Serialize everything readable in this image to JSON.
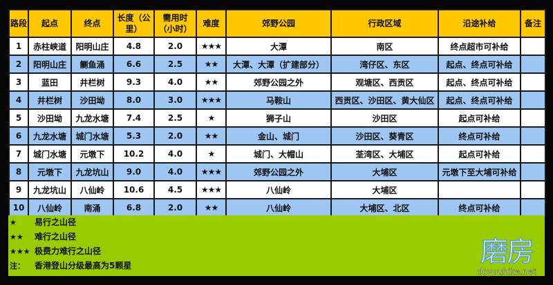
{
  "headers": [
    "路段",
    "起点",
    "终点",
    "长度（公里）",
    "需用时（小时）",
    "难度",
    "郊野公园",
    "行政区域",
    "沿途补给",
    "备注"
  ],
  "rows": [
    {
      "seg": "1",
      "start": "赤柱峡道",
      "end": "阳明山庄",
      "length": "4.8",
      "time": "2.0",
      "difficulty": "★★★",
      "park": "大潭",
      "district": "南区",
      "supply": "终点超市可补给",
      "note": ""
    },
    {
      "seg": "2",
      "start": "阳明山庄",
      "end": "鲗鱼涌",
      "length": "6.6",
      "time": "2.5",
      "difficulty": "★★",
      "park": "大潭、大潭（扩建部分）",
      "district": "湾仔区、东区",
      "supply": "起点、终点可补给",
      "note": ""
    },
    {
      "seg": "3",
      "start": "蓝田",
      "end": "井栏树",
      "length": "9.3",
      "time": "4.0",
      "difficulty": "★★",
      "park": "郊野公园之外",
      "district": "观塘区、西贡区",
      "supply": "起点、终点可补给",
      "note": ""
    },
    {
      "seg": "4",
      "start": "井栏树",
      "end": "沙田坳",
      "length": "8.0",
      "time": "3.0",
      "difficulty": "★★★",
      "park": "马鞍山",
      "district": "西贡区、沙田区、黄大仙区",
      "supply": "起点、终点可补给",
      "note": ""
    },
    {
      "seg": "5",
      "start": "沙田坳",
      "end": "九龙水塘",
      "length": "7.4",
      "time": "2.5",
      "difficulty": "★",
      "park": "狮子山",
      "district": "沙田区",
      "supply": "起点可补给",
      "note": ""
    },
    {
      "seg": "6",
      "start": "九龙水塘",
      "end": "城门水塘",
      "length": "5.3",
      "time": "2.0",
      "difficulty": "★★",
      "park": "金山、城门",
      "district": "沙田区、葵青区",
      "supply": "终点可补给",
      "note": ""
    },
    {
      "seg": "7",
      "start": "城门水塘",
      "end": "元墩下",
      "length": "10.2",
      "time": "4.0",
      "difficulty": "★",
      "park": "城门、大帽山",
      "district": "荃湾区、大埔区",
      "supply": "起点可补给",
      "note": ""
    },
    {
      "seg": "8",
      "start": "元墩下",
      "end": "九龙坑山",
      "length": "9.0",
      "time": "4.0",
      "difficulty": "★★★",
      "park": "郊野公园之外",
      "district": "大埔区",
      "supply": "元墩下至大埔可补给",
      "note": ""
    },
    {
      "seg": "9",
      "start": "九龙坑山",
      "end": "八仙岭",
      "length": "10.6",
      "time": "4.5",
      "difficulty": "★★★",
      "park": "八仙岭",
      "district": "大埔区",
      "supply": "",
      "note": ""
    },
    {
      "seg": "10",
      "start": "八仙岭",
      "end": "南涌",
      "length": "6.8",
      "time": "2.0",
      "difficulty": "★★",
      "park": "八仙岭",
      "district": "大埔区、北区",
      "supply": "终点可补给",
      "note": ""
    }
  ],
  "legend": [
    {
      "symbol": "★",
      "text": "易行之山径"
    },
    {
      "symbol": "★★",
      "text": "难行之山径"
    },
    {
      "symbol": "★★★",
      "text": "极费力难行之山径"
    },
    {
      "symbol": "注：",
      "text": "香港登山分级最高为5颗星"
    }
  ],
  "watermark": {
    "logo": "磨房",
    "site": "doyouhike.net"
  },
  "colors": {
    "header": "#FFC800",
    "row_alt": "#9EC6F2",
    "legend_bg": "#99CC00",
    "background": "#050505"
  }
}
